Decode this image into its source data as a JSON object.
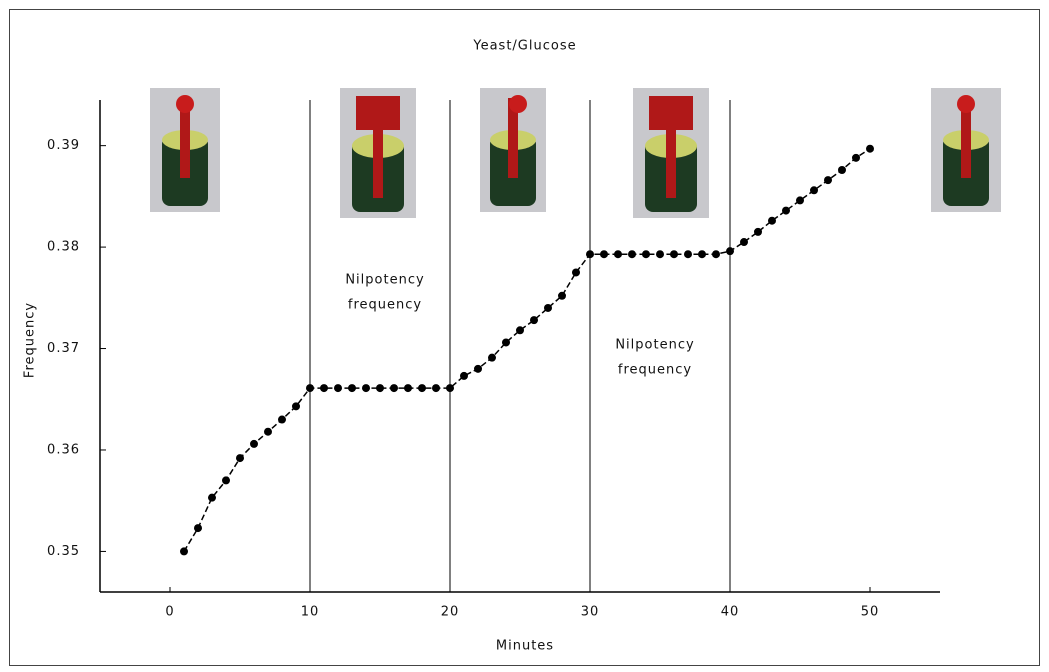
{
  "chart_data": {
    "type": "line",
    "title": "Yeast/Glucose",
    "x_label": "Minutes",
    "y_label": "Frequency",
    "x": [
      1,
      2,
      3,
      4,
      5,
      6,
      7,
      8,
      9,
      10,
      11,
      12,
      13,
      14,
      15,
      16,
      17,
      18,
      19,
      20,
      21,
      22,
      23,
      24,
      25,
      26,
      27,
      28,
      29,
      30,
      31,
      32,
      33,
      34,
      35,
      36,
      37,
      38,
      39,
      40,
      41,
      42,
      43,
      44,
      45,
      46,
      47,
      48,
      49,
      50
    ],
    "series": [
      {
        "name": "Frequency",
        "color": "#000000",
        "values": [
          0.35,
          0.3523,
          0.3553,
          0.357,
          0.3592,
          0.3606,
          0.3618,
          0.363,
          0.3643,
          0.3661,
          0.3661,
          0.3661,
          0.3661,
          0.3661,
          0.3661,
          0.3661,
          0.3661,
          0.3661,
          0.3661,
          0.3661,
          0.3673,
          0.368,
          0.3691,
          0.3706,
          0.3718,
          0.3728,
          0.374,
          0.3752,
          0.3775,
          0.3793,
          0.3793,
          0.3793,
          0.3793,
          0.3793,
          0.3793,
          0.3793,
          0.3793,
          0.3793,
          0.3793,
          0.3796,
          0.3805,
          0.3815,
          0.3826,
          0.3836,
          0.3846,
          0.3856,
          0.3866,
          0.3876,
          0.3888,
          0.3897
        ]
      }
    ],
    "xlim": [
      -5,
      55
    ],
    "ylim": [
      0.346,
      0.3945
    ],
    "xticks": [
      0,
      10,
      20,
      30,
      40,
      50
    ],
    "yticks": [
      0.35,
      0.36,
      0.37,
      0.38,
      0.39
    ],
    "vlines": [
      10,
      20,
      30,
      40
    ],
    "annotations": [
      [
        "Nilpotency",
        "frequency"
      ],
      [
        "Nilpotency",
        "frequency"
      ]
    ]
  }
}
